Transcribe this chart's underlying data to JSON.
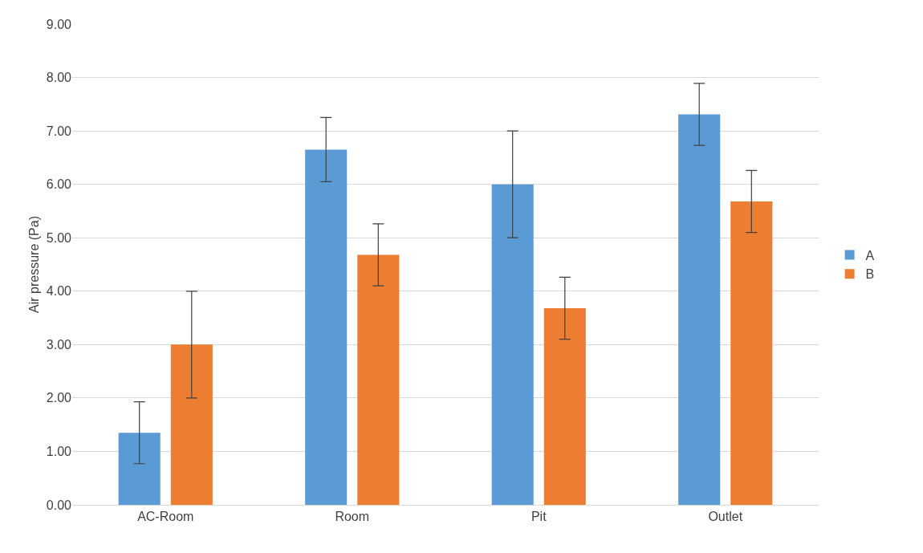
{
  "chart_data": {
    "type": "bar",
    "ylabel": "Air pressure (Pa)",
    "categories": [
      "AC-Room",
      "Room",
      "Pit",
      "Outlet"
    ],
    "series": [
      {
        "name": "A",
        "color": "#5b9bd5",
        "values": [
          1.35,
          6.65,
          6.0,
          7.31
        ],
        "errors": [
          0.58,
          0.6,
          1.0,
          0.58
        ]
      },
      {
        "name": "B",
        "color": "#ed7d31",
        "values": [
          3.0,
          4.68,
          3.68,
          5.68
        ],
        "errors": [
          1.0,
          0.58,
          0.58,
          0.58
        ]
      }
    ],
    "ylim": [
      0,
      9
    ],
    "yticks": [
      {
        "value": 0,
        "label": "0.00"
      },
      {
        "value": 1,
        "label": "1.00"
      },
      {
        "value": 2,
        "label": "2.00"
      },
      {
        "value": 3,
        "label": "3.00"
      },
      {
        "value": 4,
        "label": "4.00"
      },
      {
        "value": 5,
        "label": "5.00"
      },
      {
        "value": 6,
        "label": "6.00"
      },
      {
        "value": 7,
        "label": "7.00"
      },
      {
        "value": 8,
        "label": "8.00"
      },
      {
        "value": 9,
        "label": "9.00"
      }
    ],
    "grid": "y",
    "legend": "right"
  }
}
